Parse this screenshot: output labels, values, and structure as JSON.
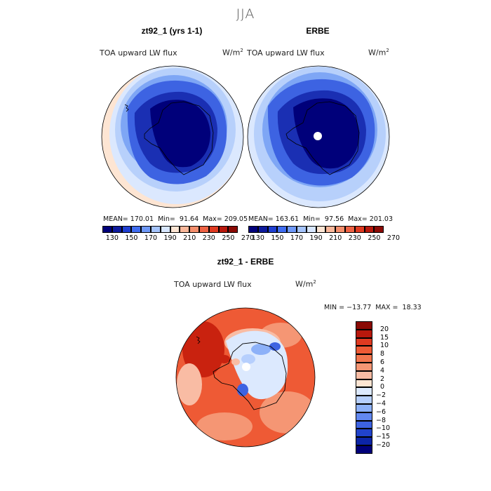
{
  "figure": {
    "season_title": "JJA"
  },
  "panels": [
    {
      "title": "zt92_1 (yrs 1-1)",
      "variable": "TOA upward LW flux",
      "units_base": "W/m",
      "units_exp": "2",
      "stats": "MEAN= 170.01  Min=  91.64  Max= 209.05"
    },
    {
      "title": "ERBE",
      "variable": "TOA upward LW flux",
      "units_base": "W/m",
      "units_exp": "2",
      "stats": "MEAN= 163.61  Min=  97.56  Max= 201.03"
    }
  ],
  "difference_panel": {
    "title": "zt92_1 - ERBE",
    "variable": "TOA upward LW flux",
    "units_base": "W/m",
    "units_exp": "2",
    "min_max": "MIN = −13.77  MAX =  18.33"
  },
  "colorbar_top": {
    "colors": [
      "#00007a",
      "#0d1a9c",
      "#1f3fd1",
      "#3f6cf0",
      "#6e98f7",
      "#a4c3fb",
      "#d7e6fe",
      "#fde5d3",
      "#f9b79a",
      "#f48e6c",
      "#ee6244",
      "#df3a21",
      "#b8180c",
      "#8a0a05"
    ],
    "tick_labels": [
      "130",
      "150",
      "170",
      "190",
      "210",
      "230",
      "250",
      "270"
    ]
  },
  "colorbar_diff": {
    "colors": [
      "#8a0a05",
      "#b8180c",
      "#df3a21",
      "#ee5a35",
      "#f2764e",
      "#f59674",
      "#f9bca4",
      "#fde5d3",
      "#dce9fe",
      "#b6cffd",
      "#8db1f8",
      "#6288f0",
      "#3d63e2",
      "#2143cb",
      "#0c25a7",
      "#00007a"
    ],
    "tick_labels": [
      "20",
      "15",
      "10",
      "8",
      "6",
      "4",
      "2",
      "0",
      "−2",
      "−4",
      "−6",
      "−8",
      "−10",
      "−15",
      "−20"
    ]
  },
  "map_colors": {
    "antarctic_core": "#00007a",
    "deep_blue": "#1a2fb3",
    "mid_blue": "#3d63e2",
    "light_blue": "#7ea6f5",
    "pale_blue": "#b7d0fb",
    "very_pale_blue": "#dbe8fe",
    "peach": "#fde5d3",
    "diff_red": "#ee5a35",
    "diff_dark_red": "#c9220f",
    "diff_orange": "#f59674"
  }
}
